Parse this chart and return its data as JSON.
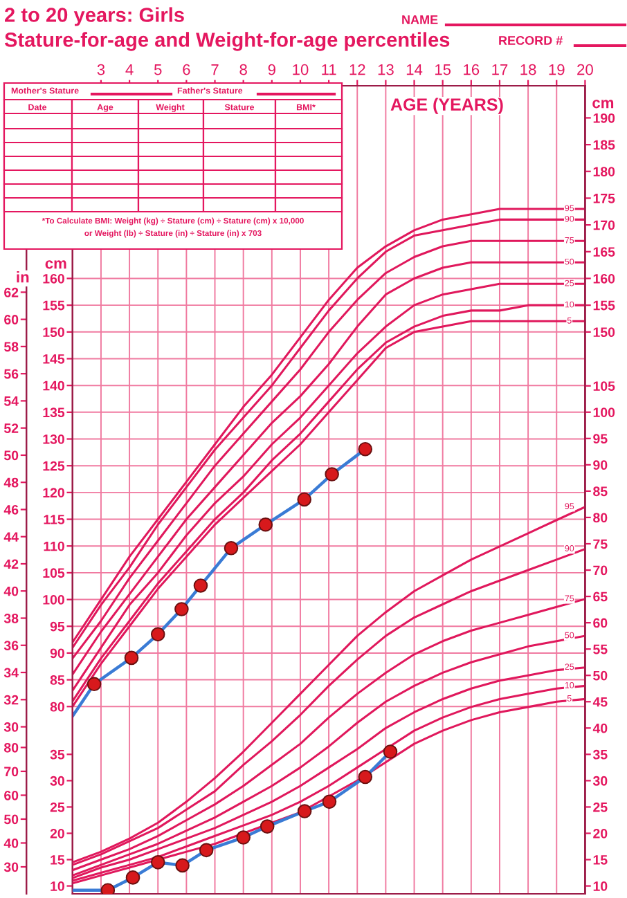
{
  "chart_data": [
    {
      "type": "line",
      "title": "2 to 20 years: Girls",
      "subtitle": "Stature-for-age and Weight-for-age percentiles",
      "xlabel": "AGE (YEARS)",
      "ylabel": "cm",
      "y2label": "cm",
      "y3label": "in",
      "annotations": [
        "NAME",
        "RECORD #",
        "Mother's Stature",
        "Father's Stature",
        "Date",
        "Age",
        "Weight",
        "Stature",
        "BMI*",
        "*To Calculate BMI: Weight (kg) ÷ Stature (cm) ÷ Stature (cm) x 10,000",
        "or Weight (lb) ÷ Stature (in) ÷ Stature (in) x 703"
      ],
      "x": [
        2,
        3,
        4,
        5,
        6,
        7,
        8,
        9,
        10,
        11,
        12,
        13,
        14,
        15,
        16,
        17,
        18,
        19,
        20
      ],
      "xlim": [
        2,
        20
      ],
      "xticks": [
        3,
        4,
        5,
        6,
        7,
        8,
        9,
        10,
        11,
        12,
        13,
        14,
        15,
        16,
        17,
        18,
        19,
        20
      ],
      "ylim": [
        45,
        196
      ],
      "yticks": [
        80,
        85,
        90,
        95,
        100,
        105,
        110,
        115,
        120,
        125,
        130,
        135,
        140,
        145,
        150,
        155,
        160
      ],
      "y2lim": [
        45,
        196
      ],
      "y2ticks": [
        150,
        155,
        160,
        165,
        170,
        175,
        180,
        185,
        190
      ],
      "y3lim": [
        17.7,
        77.2
      ],
      "y3ticks": [
        30,
        32,
        34,
        36,
        38,
        40,
        42,
        44,
        46,
        48,
        50,
        52,
        54,
        56,
        58,
        60,
        62
      ],
      "grid": true,
      "legend": false,
      "series": [
        {
          "name": "5",
          "color": "#e0185c",
          "values": [
            80,
            88,
            95,
            102,
            108,
            114,
            119,
            124,
            129,
            135,
            141,
            147,
            150,
            151,
            152,
            152,
            152,
            152,
            152
          ]
        },
        {
          "name": "10",
          "color": "#e0185c",
          "values": [
            81,
            89,
            96,
            103,
            109,
            115,
            120,
            126,
            131,
            137,
            143,
            148,
            151,
            153,
            154,
            154,
            155,
            155,
            155
          ]
        },
        {
          "name": "25",
          "color": "#e0185c",
          "values": [
            83,
            91,
            99,
            105,
            112,
            118,
            123,
            129,
            134,
            140,
            146,
            151,
            155,
            157,
            158,
            159,
            159,
            159,
            159
          ]
        },
        {
          "name": "50",
          "color": "#e0185c",
          "values": [
            86,
            94,
            101,
            108,
            115,
            121,
            127,
            133,
            138,
            144,
            151,
            157,
            160,
            162,
            163,
            163,
            163,
            163,
            163
          ]
        },
        {
          "name": "75",
          "color": "#e0185c",
          "values": [
            89,
            96,
            104,
            111,
            118,
            125,
            131,
            137,
            143,
            150,
            156,
            161,
            164,
            166,
            167,
            167,
            167,
            167,
            167
          ]
        },
        {
          "name": "90",
          "color": "#e0185c",
          "values": [
            91,
            99,
            106,
            114,
            121,
            128,
            134,
            140,
            147,
            154,
            160,
            165,
            168,
            169,
            170,
            171,
            171,
            171,
            171
          ]
        },
        {
          "name": "95",
          "color": "#e0185c",
          "values": [
            92,
            100,
            108,
            115,
            122,
            129,
            136,
            142,
            149,
            156,
            162,
            166,
            169,
            171,
            172,
            173,
            173,
            173,
            173
          ]
        },
        {
          "color": "#3a7bd5",
          "x": [
            2,
            2.76,
            4.07,
            5.0,
            5.83,
            6.5,
            7.57,
            8.78,
            10.14,
            11.11,
            12.28
          ],
          "values": [
            78.2,
            84.2,
            89.1,
            93.5,
            98.2,
            102.6,
            109.6,
            114.0,
            118.7,
            123.4,
            128.1
          ]
        },
        {
          "type": "scatter",
          "marker": "circle",
          "color": "#d7191c",
          "x": [
            2.76,
            4.07,
            5.0,
            5.83,
            6.5,
            7.57,
            8.78,
            10.14,
            11.11,
            12.28
          ],
          "values": [
            84.2,
            89.1,
            93.5,
            98.2,
            102.6,
            109.6,
            114.0,
            118.7,
            123.4,
            128.1
          ]
        }
      ]
    },
    {
      "type": "line",
      "tick_labels": "y",
      "x": [
        2,
        3,
        4,
        5,
        6,
        7,
        8,
        9,
        10,
        11,
        12,
        13,
        14,
        15,
        16,
        17,
        18,
        19,
        20
      ],
      "xlim": [
        2,
        20
      ],
      "ylim": [
        8.5,
        162
      ],
      "yticks": [
        10,
        15,
        20,
        25,
        30,
        35
      ],
      "y2lim": [
        8.5,
        162
      ],
      "y2ticks": [
        10,
        15,
        20,
        25,
        30,
        35,
        40,
        45,
        50,
        55,
        60,
        65,
        70,
        75,
        80,
        85,
        90,
        95,
        100,
        105
      ],
      "y3lim": [
        18.7,
        357.1
      ],
      "y3ticks": [
        30,
        40,
        50,
        60,
        70,
        80
      ],
      "legend": false,
      "series": [
        {
          "name": "5",
          "color": "#e0185c",
          "values": [
            10.5,
            12,
            13.5,
            15,
            16.5,
            18,
            20,
            22,
            24,
            27,
            30,
            33.5,
            37,
            39.5,
            41.5,
            43,
            44,
            45,
            45.5
          ]
        },
        {
          "name": "10",
          "color": "#e0185c",
          "values": [
            11,
            12.5,
            14,
            15.5,
            17.5,
            19.5,
            21.5,
            23.5,
            26,
            29,
            32.5,
            36,
            39.5,
            42,
            44,
            45.5,
            46.5,
            47.5,
            48
          ]
        },
        {
          "name": "25",
          "color": "#e0185c",
          "values": [
            11.5,
            13.5,
            15,
            17,
            19,
            21,
            23.5,
            26,
            29,
            32.5,
            36,
            40,
            43,
            45.5,
            47.5,
            49,
            50,
            51,
            51.5
          ]
        },
        {
          "name": "50",
          "color": "#e0185c",
          "values": [
            12,
            14,
            16,
            18,
            20.5,
            23,
            26,
            29,
            32.5,
            36.5,
            41,
            45,
            48,
            50.5,
            52.5,
            54,
            55.5,
            56.5,
            57.5
          ]
        },
        {
          "name": "75",
          "color": "#e0185c",
          "values": [
            13,
            15,
            17,
            19.5,
            22.5,
            25.5,
            29,
            33,
            37,
            42,
            46.5,
            50.5,
            54,
            56.5,
            58.5,
            60,
            61.5,
            63,
            64.5
          ]
        },
        {
          "name": "90",
          "color": "#e0185c",
          "values": [
            14,
            16,
            18.5,
            21,
            24.5,
            28,
            33,
            37.5,
            42.5,
            48,
            53,
            57.5,
            61,
            63.5,
            66,
            68,
            70,
            72,
            74
          ]
        },
        {
          "name": "95",
          "color": "#e0185c",
          "values": [
            14.5,
            16.5,
            19,
            22,
            26,
            30.5,
            35.5,
            41,
            46.5,
            52,
            57.5,
            62,
            66,
            69,
            72,
            74.5,
            77,
            79.5,
            82
          ]
        },
        {
          "color": "#3a7bd5",
          "x": [
            2,
            3.24,
            4.12,
            5.0,
            5.86,
            6.7,
            8.0,
            8.84,
            10.15,
            11.02,
            12.28,
            13.16
          ],
          "values": [
            9.2,
            9.2,
            11.6,
            14.5,
            13.9,
            16.8,
            19.2,
            21.3,
            24.2,
            26.0,
            30.7,
            35.5
          ]
        },
        {
          "type": "scatter",
          "marker": "circle",
          "color": "#d7191c",
          "x": [
            3.24,
            4.12,
            5.0,
            5.86,
            6.7,
            8.0,
            8.84,
            10.15,
            11.02,
            12.28,
            13.16
          ],
          "values": [
            9.2,
            11.6,
            14.5,
            13.9,
            16.8,
            19.2,
            21.3,
            24.2,
            26.0,
            30.7,
            35.5
          ]
        }
      ]
    }
  ]
}
